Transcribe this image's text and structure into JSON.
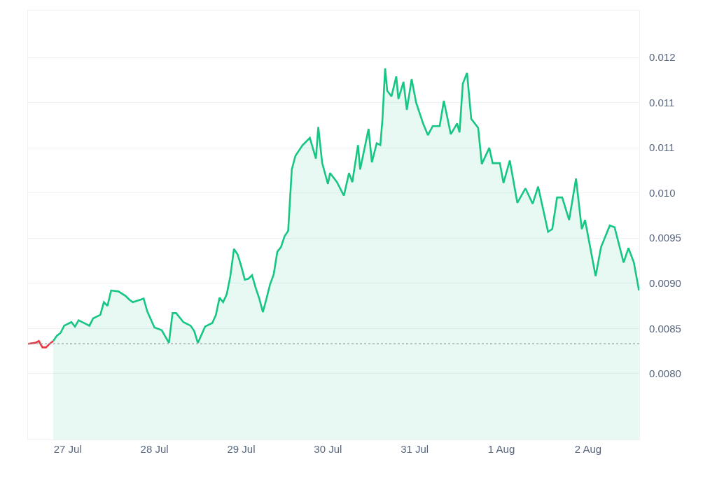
{
  "chart_data": {
    "type": "area",
    "ylim": [
      0.00727,
      0.01202
    ],
    "yticks": [
      {
        "value": 0.008,
        "label": "0.0080"
      },
      {
        "value": 0.0085,
        "label": "0.0085"
      },
      {
        "value": 0.009,
        "label": "0.0090"
      },
      {
        "value": 0.0095,
        "label": "0.0095"
      },
      {
        "value": 0.01,
        "label": "0.010"
      },
      {
        "value": 0.0105,
        "label": "0.011"
      },
      {
        "value": 0.011,
        "label": "0.011"
      },
      {
        "value": 0.0115,
        "label": "0.012"
      }
    ],
    "xlim": [
      "--07-26T13:00",
      "--08-02T14:10"
    ],
    "xticks": [
      {
        "value": "--07-27",
        "label": "27 Jul"
      },
      {
        "value": "--07-28",
        "label": "28 Jul"
      },
      {
        "value": "--07-29",
        "label": "29 Jul"
      },
      {
        "value": "--07-30",
        "label": "30 Jul"
      },
      {
        "value": "--07-31",
        "label": "31 Jul"
      },
      {
        "value": "--08-01",
        "label": "1 Aug"
      },
      {
        "value": "--08-02",
        "label": "2 Aug"
      }
    ],
    "grid": "y",
    "ref_lines": [
      {
        "axis": "y",
        "value": 0.00833,
        "color": "#9aa0a6",
        "line_style": "dotted"
      }
    ],
    "series": [
      {
        "type": "line",
        "color": "#ea3943",
        "x": [
          "--07-26T13:00",
          "--07-26T15:00",
          "--07-26T16:00",
          "--07-26T17:00",
          "--07-26T18:00",
          "--07-26T19:00",
          "--07-26T20:00"
        ],
        "values": [
          0.00833,
          0.00834,
          0.00836,
          0.00829,
          0.00829,
          0.00833,
          0.00836
        ]
      },
      {
        "color": "#16c784",
        "x": [
          "--07-26T20:00",
          "--07-26T21:00",
          "--07-26T22:00",
          "--07-26T23:00",
          "--07-27T01:00",
          "--07-27T02:00",
          "--07-27T03:00",
          "--07-27T06:00",
          "--07-27T07:00",
          "--07-27T09:00",
          "--07-27T10:00",
          "--07-27T11:00",
          "--07-27T12:00",
          "--07-27T14:00",
          "--07-27T16:00",
          "--07-27T17:00",
          "--07-27T18:00",
          "--07-27T21:00",
          "--07-27T22:00",
          "--07-28T00:00",
          "--07-28T02:00",
          "--07-28T04:00",
          "--07-28T05:00",
          "--07-28T06:00",
          "--07-28T08:00",
          "--07-28T10:00",
          "--07-28T11:00",
          "--07-28T12:00",
          "--07-28T14:00",
          "--07-28T16:00",
          "--07-28T17:00",
          "--07-28T18:00",
          "--07-28T19:00",
          "--07-28T20:00",
          "--07-28T21:00",
          "--07-28T22:00",
          "--07-28T23:00",
          "--07-29T00:00",
          "--07-29T01:00",
          "--07-29T02:00",
          "--07-29T03:00",
          "--07-29T04:00",
          "--07-29T05:00",
          "--07-29T06:00",
          "--07-29T07:00",
          "--07-29T08:00",
          "--07-29T09:00",
          "--07-29T10:00",
          "--07-29T11:00",
          "--07-29T12:00",
          "--07-29T13:00",
          "--07-29T14:00",
          "--07-29T15:00",
          "--07-29T17:00",
          "--07-29T19:00",
          "--07-29T20:40",
          "--07-29T21:20",
          "--07-29T22:25",
          "--07-30T00:00",
          "--07-30T00:35",
          "--07-30T02:30",
          "--07-30T04:25",
          "--07-30T05:50",
          "--07-30T06:45",
          "--07-30T08:20",
          "--07-30T08:55",
          "--07-30T11:15",
          "--07-30T12:10",
          "--07-30T13:30",
          "--07-30T14:30",
          "--07-30T15:05",
          "--07-30T15:50",
          "--07-30T16:25",
          "--07-30T17:35",
          "--07-30T18:55",
          "--07-30T19:30",
          "--07-30T20:55",
          "--07-30T21:50",
          "--07-30T23:10",
          "--07-31T00:25",
          "--07-31T02:20",
          "--07-31T03:40",
          "--07-31T05:00",
          "--07-31T06:55",
          "--07-31T08:05",
          "--07-31T10:00",
          "--07-31T11:45",
          "--07-31T12:25",
          "--07-31T13:20",
          "--07-31T14:30",
          "--07-31T15:40",
          "--07-31T17:35",
          "--07-31T18:35",
          "--07-31T20:40",
          "--07-31T21:35",
          "--07-31T23:35",
          "--08-01T00:35",
          "--08-01T02:20",
          "--08-01T04:25",
          "--08-01T06:40",
          "--08-01T08:40",
          "--08-01T10:10",
          "--08-01T12:00",
          "--08-01T12:55",
          "--08-01T14:05",
          "--08-01T15:25",
          "--08-01T16:50",
          "--08-01T18:45",
          "--08-01T20:40",
          "--08-01T22:15",
          "--08-01T23:10",
          "--08-02T02:05",
          "--08-02T03:35",
          "--08-02T06:00",
          "--08-02T07:20",
          "--08-02T09:50",
          "--08-02T11:10",
          "--08-02T12:40",
          "--08-02T14:05"
        ],
        "values": [
          0.00836,
          0.00842,
          0.00845,
          0.00853,
          0.00857,
          0.00852,
          0.00859,
          0.00853,
          0.00861,
          0.00865,
          0.00879,
          0.00875,
          0.00892,
          0.00891,
          0.00886,
          0.00882,
          0.00879,
          0.00883,
          0.00869,
          0.00851,
          0.00848,
          0.00834,
          0.00867,
          0.00867,
          0.00857,
          0.00853,
          0.00847,
          0.00834,
          0.00852,
          0.00856,
          0.00865,
          0.00884,
          0.00879,
          0.00888,
          0.00908,
          0.00938,
          0.00932,
          0.00919,
          0.00904,
          0.00905,
          0.00909,
          0.00895,
          0.00883,
          0.00868,
          0.00883,
          0.00899,
          0.0091,
          0.00935,
          0.0094,
          0.00952,
          0.00958,
          0.01026,
          0.01041,
          0.01053,
          0.01061,
          0.01038,
          0.01073,
          0.01033,
          0.0101,
          0.01022,
          0.01012,
          0.00997,
          0.01022,
          0.01012,
          0.01053,
          0.01026,
          0.01071,
          0.01034,
          0.01055,
          0.01053,
          0.01081,
          0.01138,
          0.01113,
          0.01107,
          0.01129,
          0.01104,
          0.01123,
          0.01092,
          0.01126,
          0.011,
          0.01077,
          0.01064,
          0.01074,
          0.01074,
          0.01102,
          0.01065,
          0.01077,
          0.01067,
          0.01121,
          0.01133,
          0.01082,
          0.01072,
          0.01032,
          0.0105,
          0.01033,
          0.01033,
          0.01011,
          0.01036,
          0.00989,
          0.01005,
          0.00988,
          0.01007,
          0.00974,
          0.00957,
          0.0096,
          0.00995,
          0.00995,
          0.0097,
          0.01016,
          0.0096,
          0.0097,
          0.00908,
          0.0094,
          0.00964,
          0.00962,
          0.00923,
          0.00939,
          0.00923,
          0.00892
        ]
      }
    ]
  }
}
